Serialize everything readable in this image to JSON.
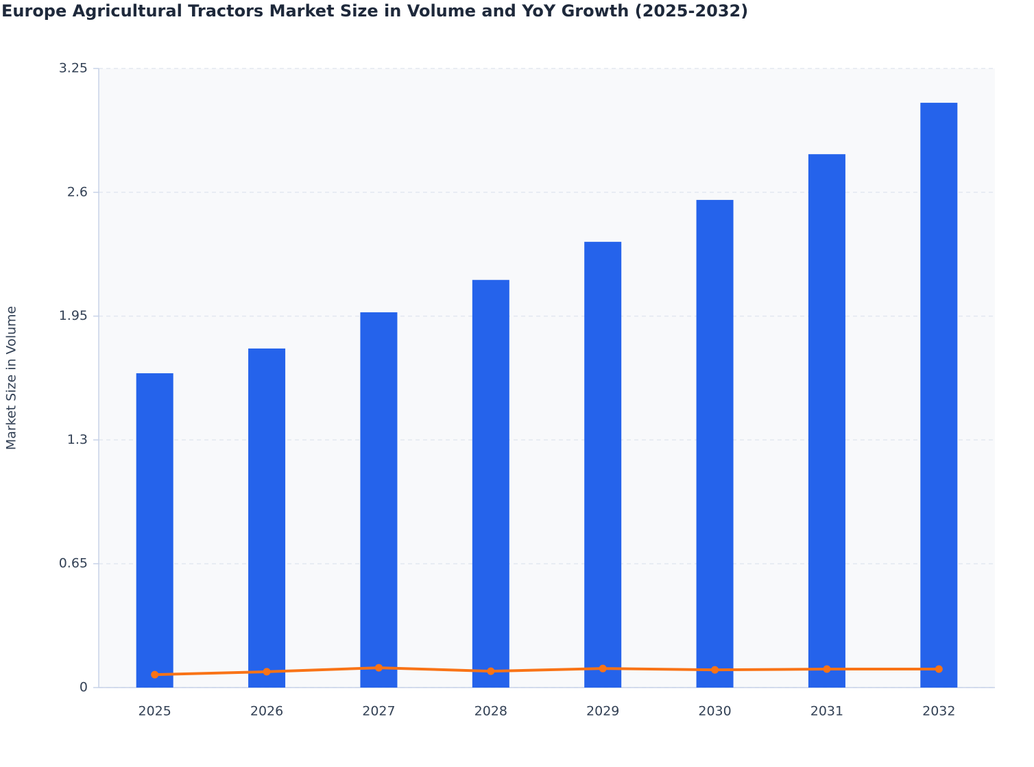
{
  "chart_data": {
    "type": "bar-line",
    "title": "Europe Agricultural Tractors Market Size in Volume and YoY Growth (2025-2032)",
    "y_label": "Market Size in Volume",
    "categories": [
      "2025",
      "2026",
      "2027",
      "2028",
      "2029",
      "2030",
      "2031",
      "2032"
    ],
    "series": [
      {
        "type": "bar",
        "color": "#2563eb",
        "values": [
          1.65,
          1.78,
          1.97,
          2.14,
          2.34,
          2.56,
          2.8,
          3.07
        ]
      },
      {
        "type": "line",
        "color": "#f97316",
        "values": [
          0.068,
          0.083,
          0.104,
          0.086,
          0.1,
          0.093,
          0.097,
          0.097
        ]
      }
    ],
    "ylim": [
      0,
      3.25
    ],
    "yticks": [
      0,
      0.65,
      1.3,
      1.95,
      2.6,
      3.25
    ],
    "grid": true
  }
}
